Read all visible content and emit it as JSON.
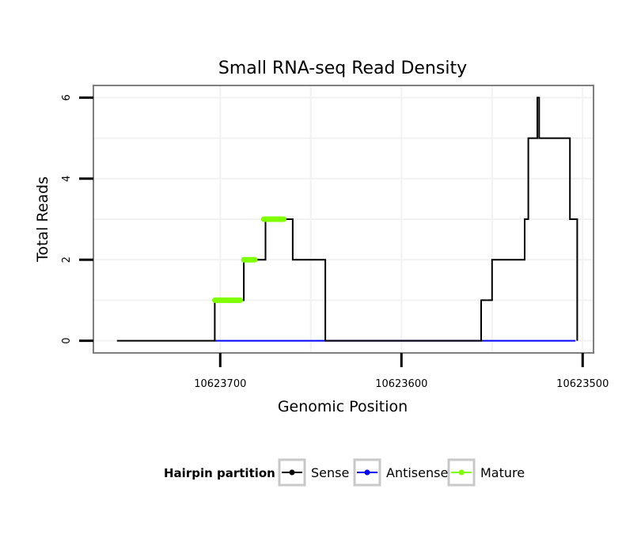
{
  "chart_data": {
    "type": "line",
    "title": "Small RNA-seq Read Density",
    "xlabel": "Genomic Position",
    "ylabel": "Total Reads",
    "xlim": [
      10623770,
      10623494
    ],
    "ylim": [
      -0.3,
      6.3
    ],
    "x_ticks": [
      10623700,
      10623600,
      10623500
    ],
    "x_tick_labels": [
      "10623700",
      "10623600",
      "10623500"
    ],
    "y_ticks": [
      0,
      2,
      4,
      6
    ],
    "y_tick_labels": [
      "0",
      "2",
      "4",
      "6"
    ],
    "grid": true,
    "legend_position": "bottom",
    "legend_title": "Hairpin partition",
    "series": [
      {
        "name": "Sense",
        "color": "#000000",
        "x": [
          10623757,
          10623703,
          10623703,
          10623687,
          10623687,
          10623675,
          10623675,
          10623672,
          10623672,
          10623660,
          10623660,
          10623657,
          10623657,
          10623642,
          10623642,
          10623556,
          10623556,
          10623550,
          10623550,
          10623544,
          10623544,
          10623532,
          10623532,
          10623530,
          10623530,
          10623528,
          10623528,
          10623525,
          10623525,
          10623524,
          10623524,
          10623518,
          10623518,
          10623507,
          10623507,
          10623506,
          10623506,
          10623503,
          10623503
        ],
        "y": [
          0,
          0,
          1,
          1,
          2,
          2,
          3,
          3,
          3,
          3,
          2,
          2,
          2,
          2,
          0,
          0,
          1,
          1,
          2,
          2,
          2,
          2,
          3,
          3,
          5,
          5,
          5,
          5,
          6,
          6,
          5,
          5,
          5,
          5,
          3,
          3,
          3,
          3,
          0
        ]
      },
      {
        "name": "Antisense",
        "color": "#0000ff",
        "x": [
          10623703,
          10623504
        ],
        "y": [
          0,
          0
        ]
      },
      {
        "name": "Mature",
        "color": "#7fff00",
        "segments": [
          {
            "x": [
              10623703,
              10623689
            ],
            "y": [
              1,
              1
            ]
          },
          {
            "x": [
              10623687,
              10623681
            ],
            "y": [
              2,
              2
            ]
          },
          {
            "x": [
              10623676,
              10623665
            ],
            "y": [
              3,
              3
            ]
          }
        ]
      }
    ]
  }
}
